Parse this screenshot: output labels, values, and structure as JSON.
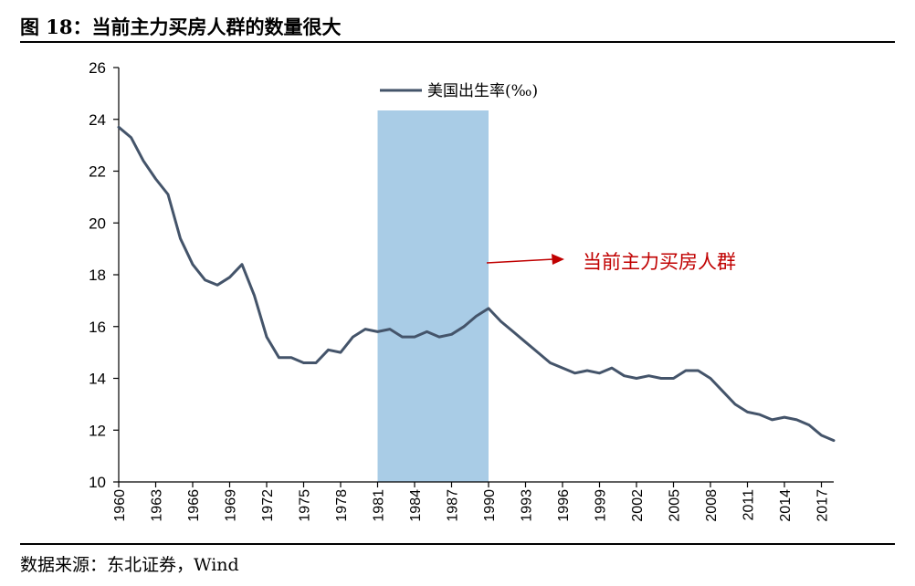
{
  "figure": {
    "title": "图 18：当前主力买房人群的数量很大",
    "source": "数据来源：东北证券，Wind"
  },
  "colors": {
    "line": "#44546A",
    "highlight": "#A9CCE6",
    "annotation": "#C00000",
    "axis": "#000000"
  },
  "chart_data": {
    "type": "line",
    "title": "",
    "xlabel": "",
    "ylabel": "",
    "ylim": [
      10,
      26
    ],
    "yticks": [
      10,
      12,
      14,
      16,
      18,
      20,
      22,
      24,
      26
    ],
    "x_tick_labels": [
      "1960",
      "1963",
      "1966",
      "1969",
      "1972",
      "1975",
      "1978",
      "1981",
      "1984",
      "1987",
      "1990",
      "1993",
      "1996",
      "1999",
      "2002",
      "2005",
      "2008",
      "2011",
      "2014",
      "2017"
    ],
    "grid": false,
    "legend_position": "top-center",
    "highlight_range": [
      1981,
      1990
    ],
    "annotation": "当前主力买房人群",
    "series": [
      {
        "name": "美国出生率(‰)",
        "x": [
          1960,
          1961,
          1962,
          1963,
          1964,
          1965,
          1966,
          1967,
          1968,
          1969,
          1970,
          1971,
          1972,
          1973,
          1974,
          1975,
          1976,
          1977,
          1978,
          1979,
          1980,
          1981,
          1982,
          1983,
          1984,
          1985,
          1986,
          1987,
          1988,
          1989,
          1990,
          1991,
          1992,
          1993,
          1994,
          1995,
          1996,
          1997,
          1998,
          1999,
          2000,
          2001,
          2002,
          2003,
          2004,
          2005,
          2006,
          2007,
          2008,
          2009,
          2010,
          2011,
          2012,
          2013,
          2014,
          2015,
          2016,
          2017,
          2018
        ],
        "values": [
          23.7,
          23.3,
          22.4,
          21.7,
          21.1,
          19.4,
          18.4,
          17.8,
          17.6,
          17.9,
          18.4,
          17.2,
          15.6,
          14.8,
          14.8,
          14.6,
          14.6,
          15.1,
          15.0,
          15.6,
          15.9,
          15.8,
          15.9,
          15.6,
          15.6,
          15.8,
          15.6,
          15.7,
          16.0,
          16.4,
          16.7,
          16.2,
          15.8,
          15.4,
          15.0,
          14.6,
          14.4,
          14.2,
          14.3,
          14.2,
          14.4,
          14.1,
          14.0,
          14.1,
          14.0,
          14.0,
          14.3,
          14.3,
          14.0,
          13.5,
          13.0,
          12.7,
          12.6,
          12.4,
          12.5,
          12.4,
          12.2,
          11.8,
          11.6
        ]
      }
    ]
  }
}
